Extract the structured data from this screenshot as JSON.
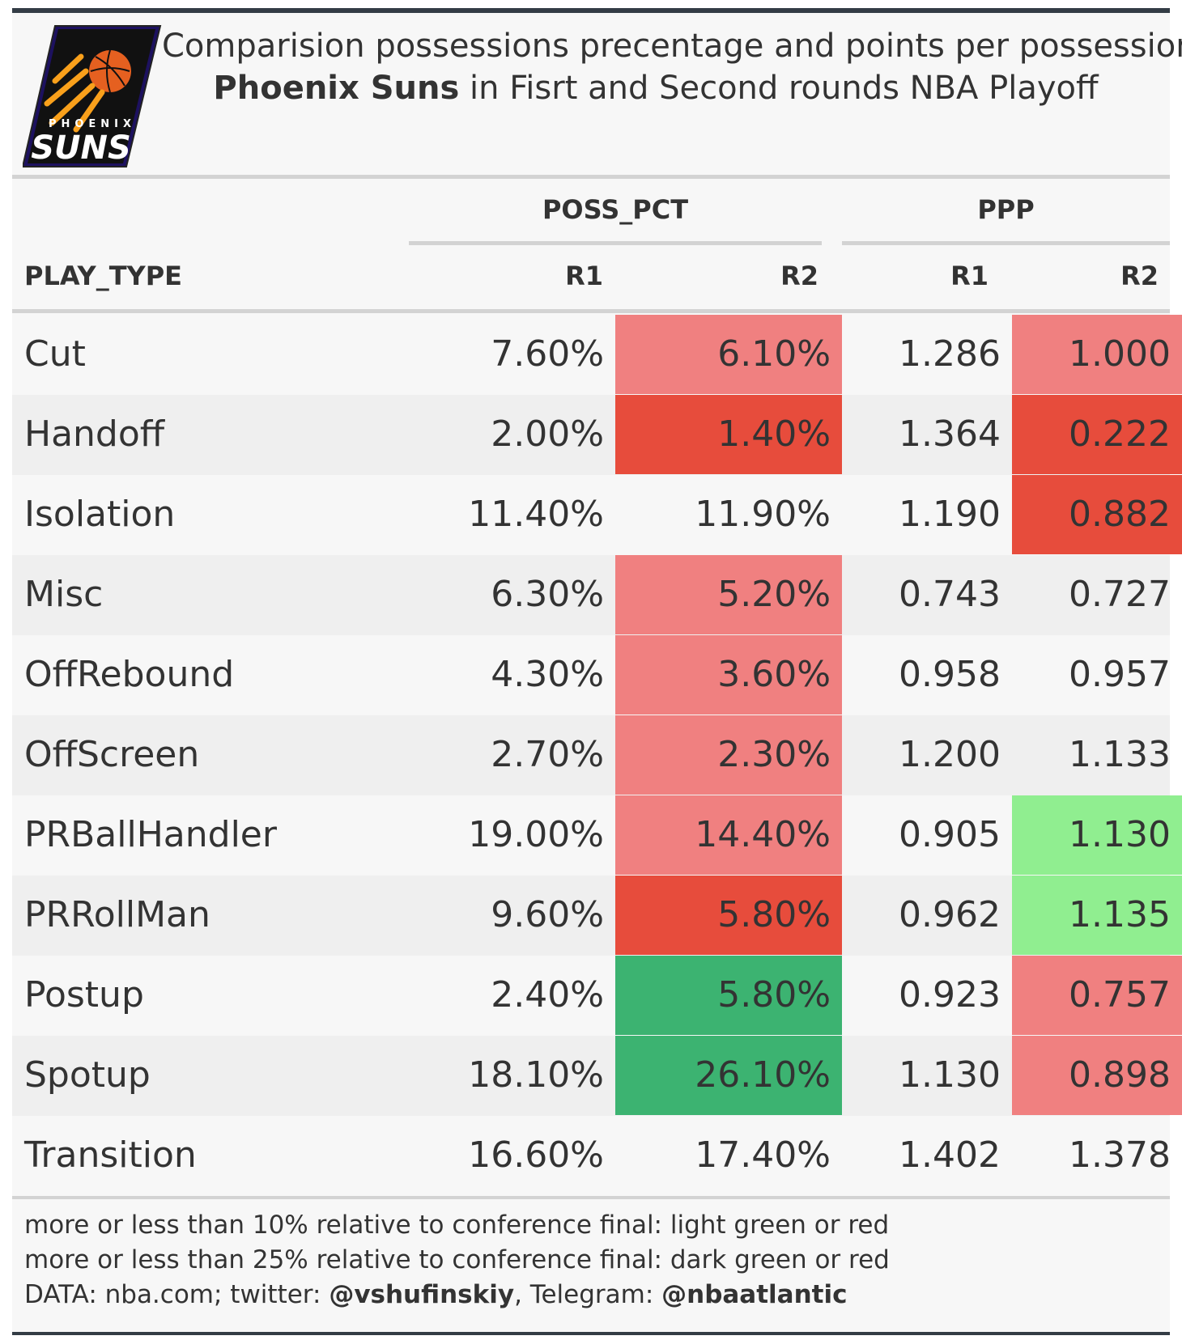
{
  "title": {
    "line1": "Comparision possessions precentage and points per possessions",
    "line2_bold": "Phoenix Suns",
    "line2_rest": " in Fisrt and Second rounds NBA Playoff"
  },
  "logo": {
    "top_text": "PHOENIX",
    "main_text": "SUNS"
  },
  "colors": {
    "light_red": "#f08080",
    "dark_red": "#e74c3c",
    "light_green": "#90ee90",
    "dark_green": "#3cb371",
    "border": "#333c45"
  },
  "footnotes": {
    "line1": "more or less than 10% relative to conference final: light green or red",
    "line2": "more or less than 25% relative to conference final: dark green or red",
    "line3_pre": "DATA: nba.com; twitter: ",
    "line3_twitter": "@vshufinskiy",
    "line3_mid": ", Telegram: ",
    "line3_telegram": "@nbaatlantic"
  },
  "chart_data": {
    "type": "table",
    "spanners": [
      "POSS_PCT",
      "PPP"
    ],
    "columns": [
      "PLAY_TYPE",
      "R1",
      "R2",
      "R1",
      "R2"
    ],
    "rows": [
      {
        "play_type": "Cut",
        "poss_r1": "7.60%",
        "poss_r2": "6.10%",
        "ppp_r1": "1.286",
        "ppp_r2": "1.000",
        "poss_r2_color": "light_red",
        "ppp_r2_color": "light_red"
      },
      {
        "play_type": "Handoff",
        "poss_r1": "2.00%",
        "poss_r2": "1.40%",
        "ppp_r1": "1.364",
        "ppp_r2": "0.222",
        "poss_r2_color": "dark_red",
        "ppp_r2_color": "dark_red"
      },
      {
        "play_type": "Isolation",
        "poss_r1": "11.40%",
        "poss_r2": "11.90%",
        "ppp_r1": "1.190",
        "ppp_r2": "0.882",
        "poss_r2_color": "",
        "ppp_r2_color": "dark_red"
      },
      {
        "play_type": "Misc",
        "poss_r1": "6.30%",
        "poss_r2": "5.20%",
        "ppp_r1": "0.743",
        "ppp_r2": "0.727",
        "poss_r2_color": "light_red",
        "ppp_r2_color": ""
      },
      {
        "play_type": "OffRebound",
        "poss_r1": "4.30%",
        "poss_r2": "3.60%",
        "ppp_r1": "0.958",
        "ppp_r2": "0.957",
        "poss_r2_color": "light_red",
        "ppp_r2_color": ""
      },
      {
        "play_type": "OffScreen",
        "poss_r1": "2.70%",
        "poss_r2": "2.30%",
        "ppp_r1": "1.200",
        "ppp_r2": "1.133",
        "poss_r2_color": "light_red",
        "ppp_r2_color": ""
      },
      {
        "play_type": "PRBallHandler",
        "poss_r1": "19.00%",
        "poss_r2": "14.40%",
        "ppp_r1": "0.905",
        "ppp_r2": "1.130",
        "poss_r2_color": "light_red",
        "ppp_r2_color": "light_green"
      },
      {
        "play_type": "PRRollMan",
        "poss_r1": "9.60%",
        "poss_r2": "5.80%",
        "ppp_r1": "0.962",
        "ppp_r2": "1.135",
        "poss_r2_color": "dark_red",
        "ppp_r2_color": "light_green"
      },
      {
        "play_type": "Postup",
        "poss_r1": "2.40%",
        "poss_r2": "5.80%",
        "ppp_r1": "0.923",
        "ppp_r2": "0.757",
        "poss_r2_color": "dark_green",
        "ppp_r2_color": "light_red"
      },
      {
        "play_type": "Spotup",
        "poss_r1": "18.10%",
        "poss_r2": "26.10%",
        "ppp_r1": "1.130",
        "ppp_r2": "0.898",
        "poss_r2_color": "dark_green",
        "ppp_r2_color": "light_red"
      },
      {
        "play_type": "Transition",
        "poss_r1": "16.60%",
        "poss_r2": "17.40%",
        "ppp_r1": "1.402",
        "ppp_r2": "1.378",
        "poss_r2_color": "",
        "ppp_r2_color": ""
      }
    ]
  }
}
